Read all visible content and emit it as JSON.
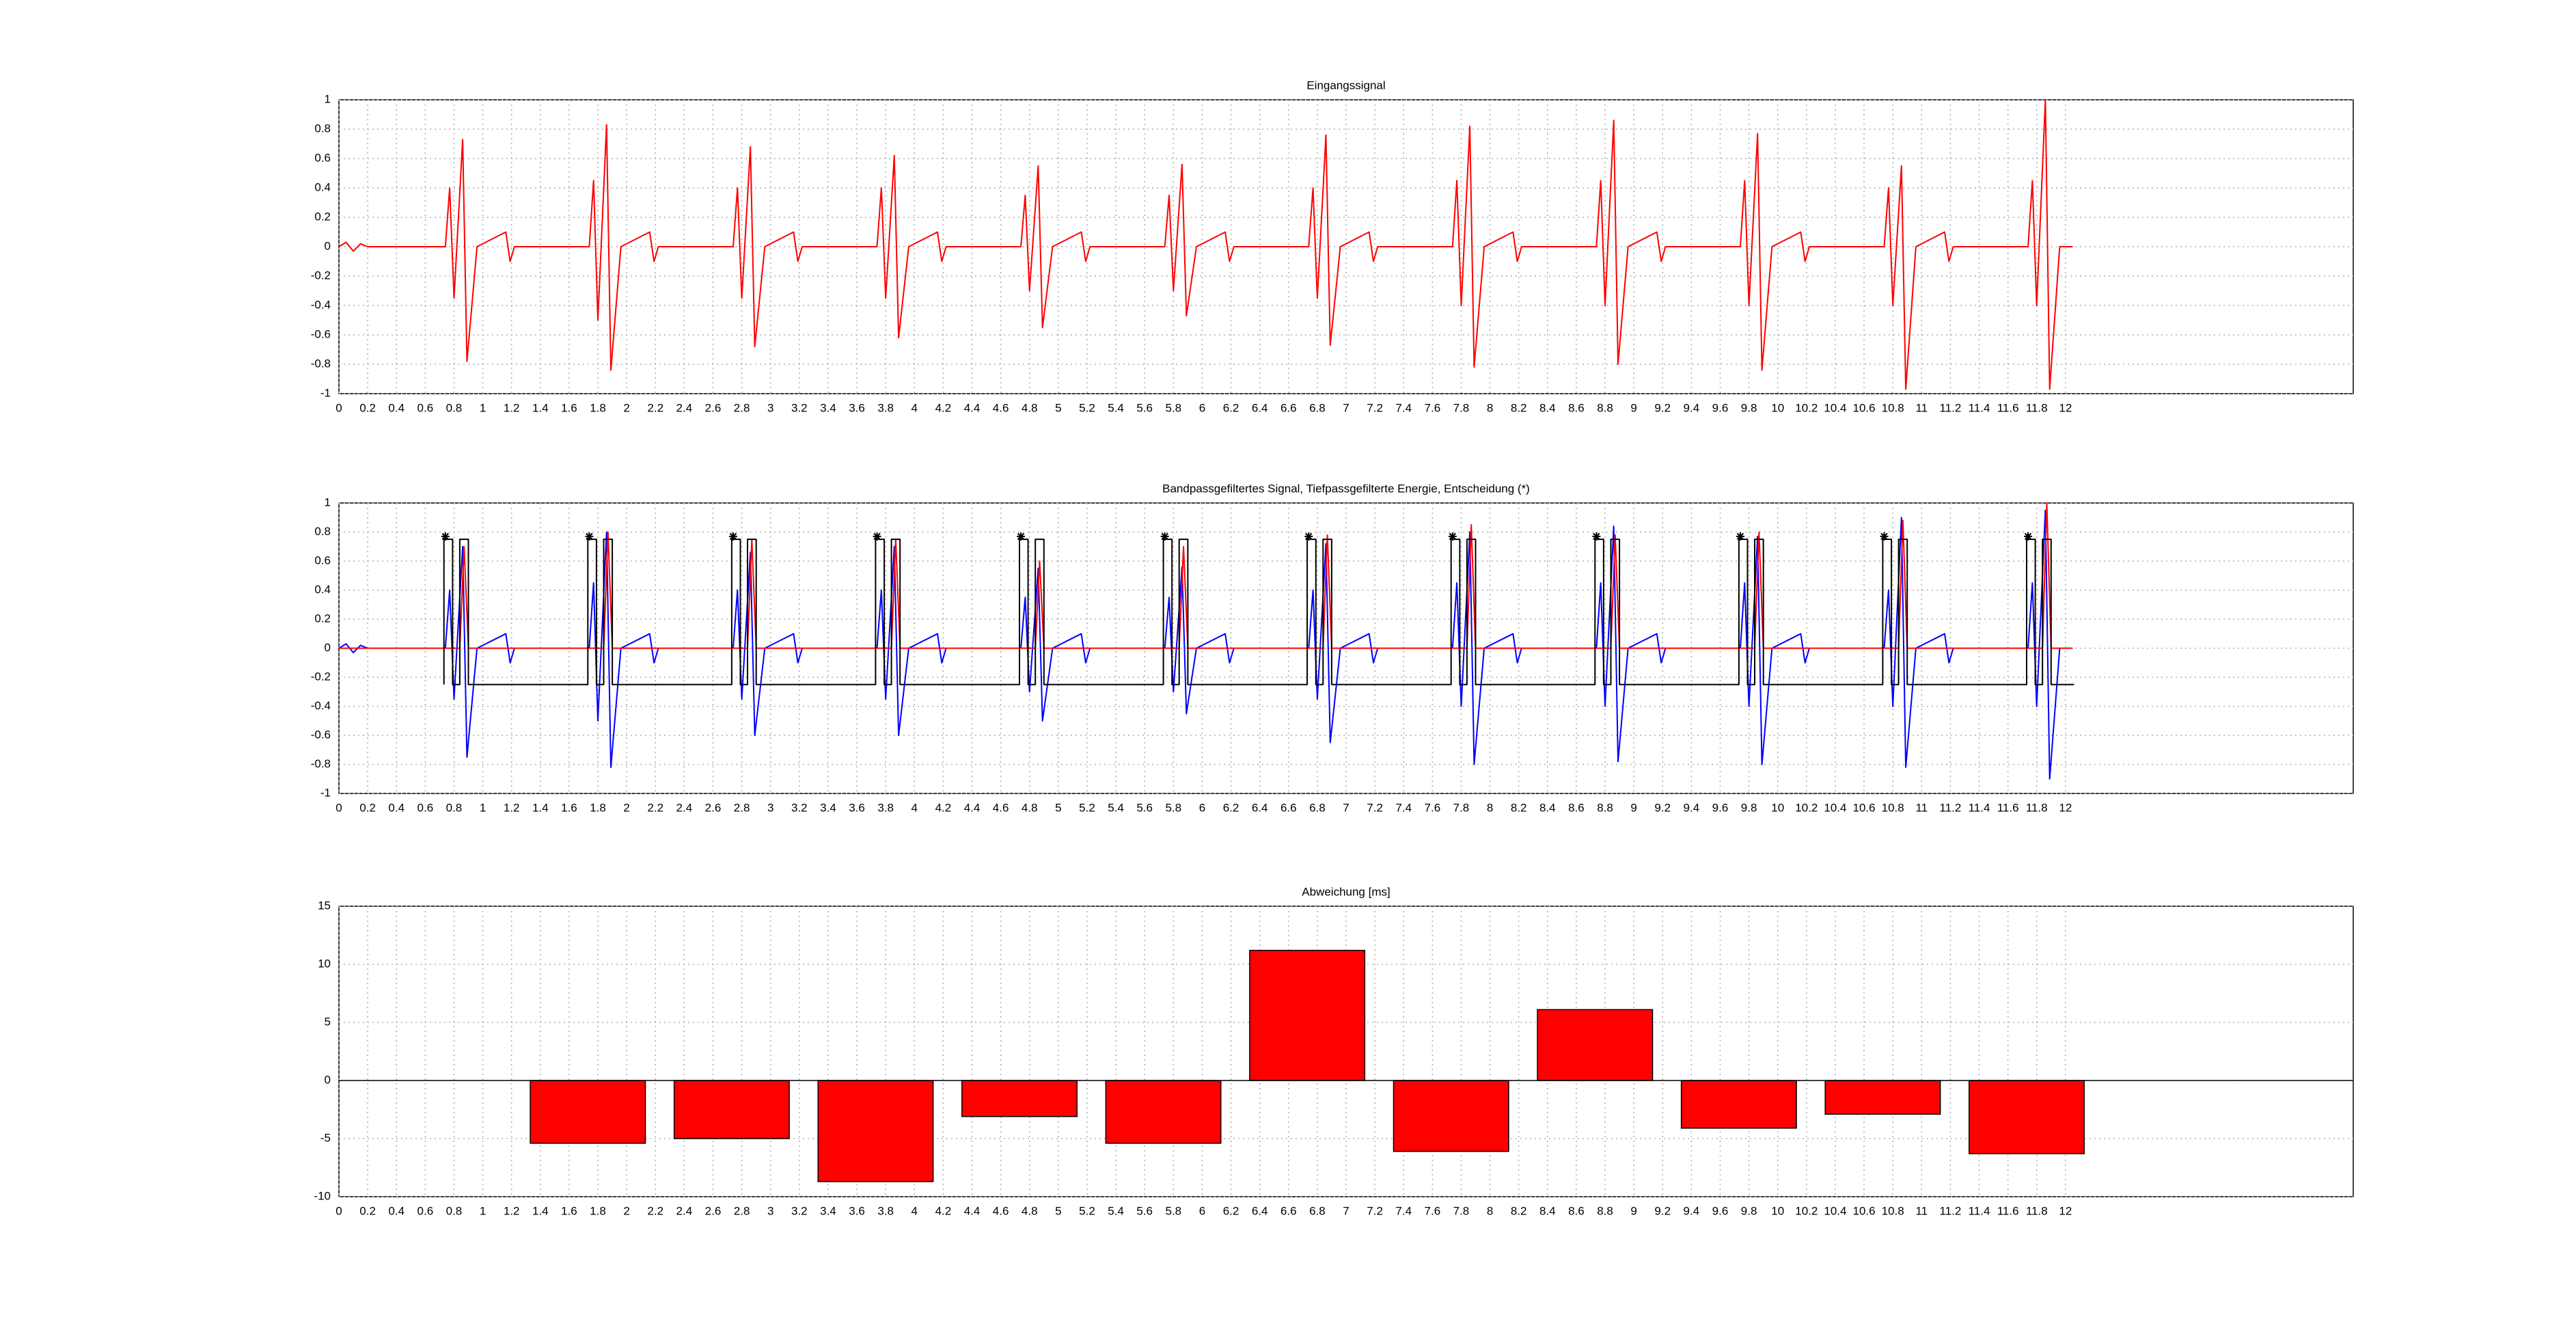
{
  "chart_data": [
    {
      "type": "line",
      "title": "Eingangssignal",
      "grid": true,
      "xlim": [
        0,
        14
      ],
      "ylim": [
        -1,
        1
      ],
      "xticks": [
        0,
        0.2,
        0.4,
        0.6,
        0.8,
        1,
        1.2,
        1.4,
        1.6,
        1.8,
        2,
        2.2,
        2.4,
        2.6,
        2.8,
        3,
        3.2,
        3.4,
        3.6,
        3.8,
        4,
        4.2,
        4.4,
        4.6,
        4.8,
        5,
        5.2,
        5.4,
        5.6,
        5.8,
        6,
        6.2,
        6.4,
        6.6,
        6.8,
        7,
        7.2,
        7.4,
        7.6,
        7.8,
        8,
        8.2,
        8.4,
        8.6,
        8.8,
        9,
        9.2,
        9.4,
        9.6,
        9.8,
        10,
        10.2,
        10.4,
        10.6,
        10.8,
        11,
        11.2,
        11.4,
        11.6,
        11.8,
        12
      ],
      "yticks": [
        -1,
        -0.8,
        -0.6,
        -0.4,
        -0.2,
        0,
        0.2,
        0.4,
        0.6,
        0.8,
        1
      ],
      "series": [
        {
          "color": "#ff0000",
          "x": [
            0,
            0.05,
            0.1,
            0.15,
            0.2,
            0.74,
            0.77,
            0.8,
            0.86,
            0.89,
            0.96,
            1.16,
            1.19,
            1.22,
            1.74,
            1.77,
            1.8,
            1.86,
            1.89,
            1.96,
            2.16,
            2.19,
            2.22,
            2.74,
            2.77,
            2.8,
            2.86,
            2.89,
            2.96,
            3.16,
            3.19,
            3.22,
            3.74,
            3.77,
            3.8,
            3.86,
            3.89,
            3.96,
            4.16,
            4.19,
            4.22,
            4.74,
            4.77,
            4.8,
            4.86,
            4.89,
            4.96,
            5.16,
            5.19,
            5.22,
            5.74,
            5.77,
            5.8,
            5.86,
            5.89,
            5.96,
            6.16,
            6.19,
            6.22,
            6.74,
            6.77,
            6.8,
            6.86,
            6.89,
            6.96,
            7.16,
            7.19,
            7.22,
            7.74,
            7.77,
            7.8,
            7.86,
            7.89,
            7.96,
            8.16,
            8.19,
            8.22,
            8.74,
            8.77,
            8.8,
            8.86,
            8.89,
            8.96,
            9.16,
            9.19,
            9.22,
            9.74,
            9.77,
            9.8,
            9.86,
            9.89,
            9.96,
            10.16,
            10.19,
            10.22,
            10.74,
            10.77,
            10.8,
            10.86,
            10.89,
            10.96,
            11.16,
            11.19,
            11.22,
            11.74,
            11.77,
            11.8,
            11.86,
            11.89,
            11.96,
            12.05
          ],
          "values": [
            0,
            0.03,
            -0.03,
            0.02,
            0,
            0,
            0.4,
            -0.35,
            0.73,
            -0.78,
            0,
            0.1,
            -0.1,
            0,
            0,
            0.45,
            -0.5,
            0.83,
            -0.84,
            0,
            0.1,
            -0.1,
            0,
            0,
            0.4,
            -0.35,
            0.68,
            -0.68,
            0,
            0.1,
            -0.1,
            0,
            0,
            0.4,
            -0.35,
            0.62,
            -0.62,
            0,
            0.1,
            -0.1,
            0,
            0,
            0.35,
            -0.3,
            0.55,
            -0.55,
            0,
            0.1,
            -0.1,
            0,
            0,
            0.35,
            -0.3,
            0.56,
            -0.47,
            0,
            0.1,
            -0.1,
            0,
            0,
            0.4,
            -0.35,
            0.76,
            -0.67,
            0,
            0.1,
            -0.1,
            0,
            0,
            0.45,
            -0.4,
            0.82,
            -0.82,
            0,
            0.1,
            -0.1,
            0,
            0,
            0.45,
            -0.4,
            0.86,
            -0.8,
            0,
            0.1,
            -0.1,
            0,
            0,
            0.45,
            -0.4,
            0.77,
            -0.84,
            0,
            0.1,
            -0.1,
            0,
            0,
            0.4,
            -0.4,
            0.55,
            -0.97,
            0,
            0.1,
            -0.1,
            0,
            0,
            0.45,
            -0.4,
            1,
            -0.97,
            0,
            0
          ]
        }
      ]
    },
    {
      "type": "line",
      "title": "Bandpassgefiltertes Signal, Tiefpassgefilterte Energie, Entscheidung (*)",
      "grid": true,
      "xlim": [
        0,
        14
      ],
      "ylim": [
        -1,
        1
      ],
      "xticks": [
        0,
        0.2,
        0.4,
        0.6,
        0.8,
        1,
        1.2,
        1.4,
        1.6,
        1.8,
        2,
        2.2,
        2.4,
        2.6,
        2.8,
        3,
        3.2,
        3.4,
        3.6,
        3.8,
        4,
        4.2,
        4.4,
        4.6,
        4.8,
        5,
        5.2,
        5.4,
        5.6,
        5.8,
        6,
        6.2,
        6.4,
        6.6,
        6.8,
        7,
        7.2,
        7.4,
        7.6,
        7.8,
        8,
        8.2,
        8.4,
        8.6,
        8.8,
        9,
        9.2,
        9.4,
        9.6,
        9.8,
        10,
        10.2,
        10.4,
        10.6,
        10.8,
        11,
        11.2,
        11.4,
        11.6,
        11.8,
        12
      ],
      "yticks": [
        -1,
        -0.8,
        -0.6,
        -0.4,
        -0.2,
        0,
        0.2,
        0.4,
        0.6,
        0.8,
        1
      ],
      "series": [
        {
          "color": "#0000ff",
          "x": [
            0,
            0.05,
            0.1,
            0.15,
            0.2,
            0.74,
            0.77,
            0.8,
            0.86,
            0.89,
            0.96,
            1.16,
            1.19,
            1.22,
            1.74,
            1.77,
            1.8,
            1.86,
            1.89,
            1.96,
            2.16,
            2.19,
            2.22,
            2.74,
            2.77,
            2.8,
            2.86,
            2.89,
            2.96,
            3.16,
            3.19,
            3.22,
            3.74,
            3.77,
            3.8,
            3.86,
            3.89,
            3.96,
            4.16,
            4.19,
            4.22,
            4.74,
            4.77,
            4.8,
            4.86,
            4.89,
            4.96,
            5.16,
            5.19,
            5.22,
            5.74,
            5.77,
            5.8,
            5.86,
            5.89,
            5.96,
            6.16,
            6.19,
            6.22,
            6.74,
            6.77,
            6.8,
            6.86,
            6.89,
            6.96,
            7.16,
            7.19,
            7.22,
            7.74,
            7.77,
            7.8,
            7.86,
            7.89,
            7.96,
            8.16,
            8.19,
            8.22,
            8.74,
            8.77,
            8.8,
            8.86,
            8.89,
            8.96,
            9.16,
            9.19,
            9.22,
            9.74,
            9.77,
            9.8,
            9.86,
            9.89,
            9.96,
            10.16,
            10.19,
            10.22,
            10.74,
            10.77,
            10.8,
            10.86,
            10.89,
            10.96,
            11.16,
            11.19,
            11.22,
            11.74,
            11.77,
            11.8,
            11.86,
            11.89,
            11.96,
            12.05
          ],
          "values": [
            0,
            0.03,
            -0.03,
            0.02,
            0,
            0,
            0.4,
            -0.35,
            0.7,
            -0.75,
            0,
            0.1,
            -0.1,
            0,
            0,
            0.45,
            -0.5,
            0.8,
            -0.82,
            0,
            0.1,
            -0.1,
            0,
            0,
            0.4,
            -0.35,
            0.66,
            -0.6,
            0,
            0.1,
            -0.1,
            0,
            0,
            0.4,
            -0.35,
            0.7,
            -0.6,
            0,
            0.1,
            -0.1,
            0,
            0,
            0.35,
            -0.3,
            0.55,
            -0.5,
            0,
            0.1,
            -0.1,
            0,
            0,
            0.35,
            -0.3,
            0.56,
            -0.45,
            0,
            0.1,
            -0.1,
            0,
            0,
            0.4,
            -0.35,
            0.72,
            -0.65,
            0,
            0.1,
            -0.1,
            0,
            0,
            0.45,
            -0.4,
            0.8,
            -0.8,
            0,
            0.1,
            -0.1,
            0,
            0,
            0.45,
            -0.4,
            0.84,
            -0.78,
            0,
            0.1,
            -0.1,
            0,
            0,
            0.45,
            -0.4,
            0.77,
            -0.8,
            0,
            0.1,
            -0.1,
            0,
            0,
            0.4,
            -0.4,
            0.9,
            -0.82,
            0,
            0.1,
            -0.1,
            0,
            0,
            0.45,
            -0.4,
            0.95,
            -0.9,
            0,
            0
          ]
        },
        {
          "color": "#ff0000",
          "x": [
            0,
            0.84,
            0.87,
            0.9,
            1.84,
            1.87,
            1.9,
            2.84,
            2.87,
            2.9,
            3.84,
            3.87,
            3.9,
            4.84,
            4.87,
            4.9,
            5.84,
            5.87,
            5.9,
            6.84,
            6.87,
            6.9,
            7.84,
            7.87,
            7.9,
            8.84,
            8.87,
            8.9,
            9.84,
            9.87,
            9.9,
            10.84,
            10.87,
            10.9,
            11.84,
            11.87,
            11.9,
            12.05
          ],
          "values": [
            0,
            0,
            0.7,
            0,
            0,
            0.8,
            0,
            0,
            0.75,
            0,
            0,
            0.75,
            0,
            0,
            0.6,
            0,
            0,
            0.7,
            0,
            0,
            0.78,
            0,
            0,
            0.85,
            0,
            0,
            0.78,
            0,
            0,
            0.8,
            0,
            0,
            0.88,
            0,
            0,
            1,
            0,
            0
          ]
        },
        {
          "color": "#000000",
          "x": [
            0.73,
            0.73,
            0.79,
            0.79,
            0.84,
            0.84,
            0.9,
            0.9,
            1.73,
            1.73,
            1.79,
            1.79,
            1.84,
            1.84,
            1.9,
            1.9,
            2.73,
            2.73,
            2.79,
            2.79,
            2.84,
            2.84,
            2.9,
            2.9,
            3.73,
            3.73,
            3.79,
            3.79,
            3.84,
            3.84,
            3.9,
            3.9,
            4.73,
            4.73,
            4.79,
            4.79,
            4.84,
            4.84,
            4.9,
            4.9,
            5.73,
            5.73,
            5.79,
            5.79,
            5.84,
            5.84,
            5.9,
            5.9,
            6.73,
            6.73,
            6.79,
            6.79,
            6.84,
            6.84,
            6.9,
            6.9,
            7.73,
            7.73,
            7.79,
            7.79,
            7.84,
            7.84,
            7.9,
            7.9,
            8.73,
            8.73,
            8.79,
            8.79,
            8.84,
            8.84,
            8.9,
            8.9,
            9.73,
            9.73,
            9.79,
            9.79,
            9.84,
            9.84,
            9.9,
            9.9,
            10.73,
            10.73,
            10.79,
            10.79,
            10.84,
            10.84,
            10.9,
            10.9,
            11.73,
            11.73,
            11.79,
            11.79,
            11.84,
            11.84,
            11.9,
            11.9,
            12.06
          ],
          "values": [
            -0.25,
            0.75,
            0.75,
            -0.25,
            -0.25,
            0.75,
            0.75,
            -0.25,
            -0.25,
            0.75,
            0.75,
            -0.25,
            -0.25,
            0.75,
            0.75,
            -0.25,
            -0.25,
            0.75,
            0.75,
            -0.25,
            -0.25,
            0.75,
            0.75,
            -0.25,
            -0.25,
            0.75,
            0.75,
            -0.25,
            -0.25,
            0.75,
            0.75,
            -0.25,
            -0.25,
            0.75,
            0.75,
            -0.25,
            -0.25,
            0.75,
            0.75,
            -0.25,
            -0.25,
            0.75,
            0.75,
            -0.25,
            -0.25,
            0.75,
            0.75,
            -0.25,
            -0.25,
            0.75,
            0.75,
            -0.25,
            -0.25,
            0.75,
            0.75,
            -0.25,
            -0.25,
            0.75,
            0.75,
            -0.25,
            -0.25,
            0.75,
            0.75,
            -0.25,
            -0.25,
            0.75,
            0.75,
            -0.25,
            -0.25,
            0.75,
            0.75,
            -0.25,
            -0.25,
            0.75,
            0.75,
            -0.25,
            -0.25,
            0.75,
            0.75,
            -0.25,
            -0.25,
            0.75,
            0.75,
            -0.25,
            -0.25,
            0.75,
            0.75,
            -0.25,
            -0.25,
            0.75,
            0.75,
            -0.25,
            -0.25,
            0.75,
            0.75,
            -0.25,
            -0.25
          ]
        },
        {
          "color": "#000000",
          "marker": "*",
          "x": [
            0.74,
            1.74,
            2.74,
            3.74,
            4.74,
            5.74,
            6.74,
            7.74,
            8.74,
            9.74,
            10.74,
            11.74
          ],
          "values": [
            0.77,
            0.77,
            0.77,
            0.77,
            0.77,
            0.77,
            0.77,
            0.77,
            0.77,
            0.77,
            0.77,
            0.77
          ]
        }
      ]
    },
    {
      "type": "bar",
      "title": "Abweichung [ms]",
      "grid": true,
      "xlim": [
        0,
        14
      ],
      "ylim": [
        -10,
        15
      ],
      "xticks": [
        0,
        0.2,
        0.4,
        0.6,
        0.8,
        1,
        1.2,
        1.4,
        1.6,
        1.8,
        2,
        2.2,
        2.4,
        2.6,
        2.8,
        3,
        3.2,
        3.4,
        3.6,
        3.8,
        4,
        4.2,
        4.4,
        4.6,
        4.8,
        5,
        5.2,
        5.4,
        5.6,
        5.8,
        6,
        6.2,
        6.4,
        6.6,
        6.8,
        7,
        7.2,
        7.4,
        7.6,
        7.8,
        8,
        8.2,
        8.4,
        8.6,
        8.8,
        9,
        9.2,
        9.4,
        9.6,
        9.8,
        10,
        10.2,
        10.4,
        10.6,
        10.8,
        11,
        11.2,
        11.4,
        11.6,
        11.8,
        12
      ],
      "yticks": [
        -10,
        -5,
        0,
        5,
        10,
        15
      ],
      "color": "#ff0000",
      "edgecolor": "#000000",
      "x": [
        1.73,
        2.73,
        3.73,
        4.73,
        5.73,
        6.73,
        7.73,
        8.73,
        9.73,
        10.73,
        11.73
      ],
      "values": [
        -5.4,
        -5,
        -8.7,
        -3.1,
        -5.4,
        11.2,
        -6.1,
        6.1,
        -4.1,
        -2.9,
        -6.3
      ]
    }
  ]
}
